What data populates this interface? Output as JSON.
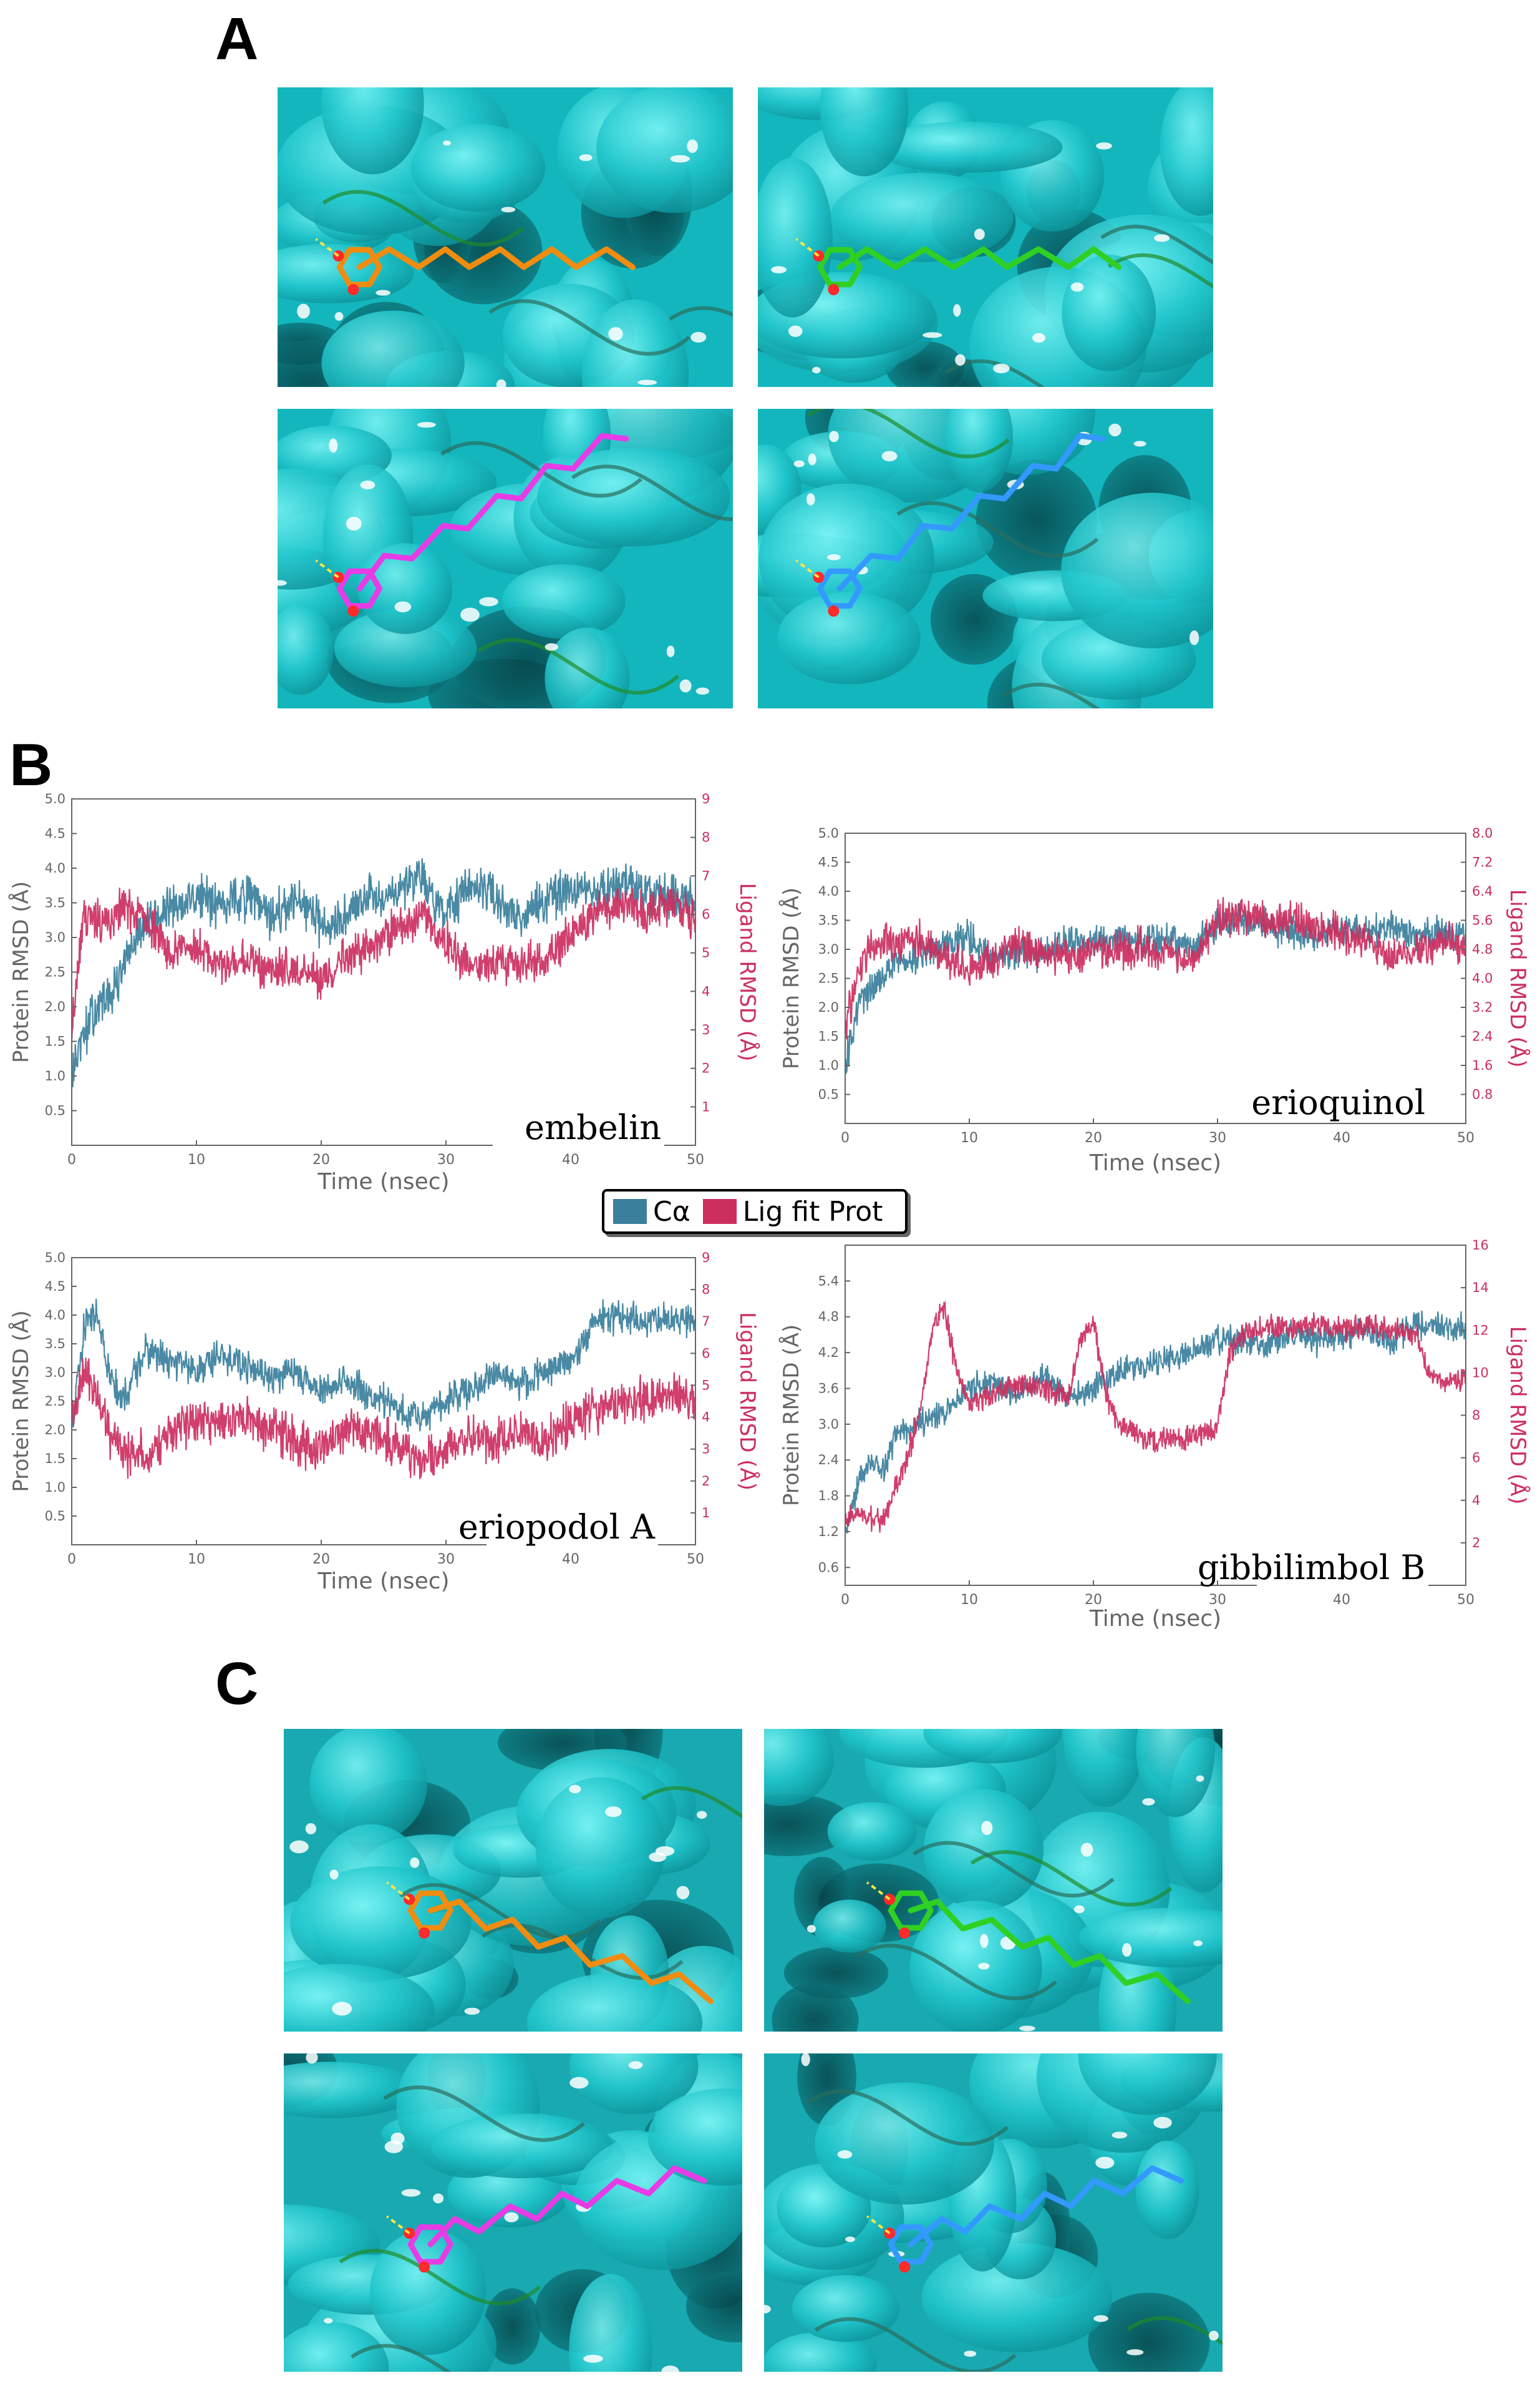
{
  "panels": {
    "a": "A",
    "b": "B",
    "c": "C"
  },
  "colors": {
    "protein": "#3a7f9c",
    "ligand": "#cc2f5e",
    "surface": "#20c6cc",
    "surface_dark": "#0a5d62",
    "embelin": "#f08c10",
    "erioquinol": "#2fd023",
    "eriopodol_a": "#e63ce6",
    "gibbilimbol_b": "#3399ff"
  },
  "legend": {
    "protein_label": "Cα",
    "ligand_label": "Lig fit Prot"
  },
  "chart_data": [
    {
      "type": "line",
      "name": "embelin",
      "title": "embelin",
      "xlabel": "Time (nsec)",
      "ylabel": "Protein RMSD (Å)",
      "y2label": "Ligand RMSD (Å)",
      "xlim": [
        0,
        50
      ],
      "ylim": [
        0,
        5.0
      ],
      "y2lim": [
        0,
        9
      ],
      "xticks": [
        0,
        10,
        20,
        30,
        40,
        50
      ],
      "yticks": [
        0.5,
        1.0,
        1.5,
        2.0,
        2.5,
        3.0,
        3.5,
        4.0,
        4.5,
        5.0
      ],
      "y2ticks": [
        1,
        2,
        3,
        4,
        5,
        6,
        7,
        8,
        9
      ],
      "xtick_labels": [
        "0",
        "10",
        "20",
        "30",
        "40",
        "50"
      ],
      "ytick_labels": [
        "0.5",
        "1.0",
        "1.5",
        "2.0",
        "2.5",
        "3.0",
        "3.5",
        "4.0",
        "4.5",
        "5.0"
      ],
      "y2tick_labels": [
        "1",
        "2",
        "3",
        "4",
        "5",
        "6",
        "7",
        "8",
        "9"
      ],
      "series": [
        {
          "name": "Cα",
          "axis": "left",
          "x": [
            0,
            1,
            2,
            3,
            4,
            5,
            6,
            8,
            10,
            12,
            14,
            16,
            18,
            20,
            22,
            24,
            26,
            28,
            30,
            32,
            34,
            36,
            38,
            40,
            42,
            44,
            46,
            48,
            50
          ],
          "values": [
            1.0,
            1.6,
            2.0,
            2.1,
            2.5,
            2.9,
            3.2,
            3.4,
            3.6,
            3.5,
            3.6,
            3.3,
            3.5,
            3.2,
            3.3,
            3.6,
            3.7,
            3.9,
            3.3,
            3.7,
            3.6,
            3.3,
            3.5,
            3.7,
            3.6,
            3.8,
            3.7,
            3.6,
            3.5
          ],
          "noise": 0.35
        },
        {
          "name": "Lig fit Prot",
          "axis": "right",
          "x": [
            0,
            1,
            2,
            3,
            4,
            6,
            8,
            10,
            12,
            14,
            16,
            18,
            20,
            22,
            24,
            26,
            28,
            30,
            32,
            34,
            36,
            38,
            40,
            42,
            44,
            46,
            48,
            50
          ],
          "values": [
            3.0,
            6.0,
            5.9,
            5.7,
            6.2,
            5.8,
            5.0,
            5.2,
            4.7,
            4.8,
            4.5,
            4.6,
            4.3,
            4.9,
            5.2,
            5.6,
            6.0,
            5.3,
            4.6,
            4.8,
            4.6,
            4.9,
            5.4,
            6.1,
            6.2,
            6.0,
            6.3,
            5.9
          ],
          "noise": 0.55
        }
      ]
    },
    {
      "type": "line",
      "name": "erioquinol",
      "title": "erioquinol",
      "xlabel": "Time (nsec)",
      "ylabel": "Protein RMSD (Å)",
      "y2label": "Ligand RMSD (Å)",
      "xlim": [
        0,
        50
      ],
      "ylim": [
        0,
        5.0
      ],
      "y2lim": [
        0,
        8.0
      ],
      "xticks": [
        0,
        10,
        20,
        30,
        40,
        50
      ],
      "yticks": [
        0.5,
        1.0,
        1.5,
        2.0,
        2.5,
        3.0,
        3.5,
        4.0,
        4.5,
        5.0
      ],
      "y2ticks": [
        0.8,
        1.6,
        2.4,
        3.2,
        4.0,
        4.8,
        5.6,
        6.4,
        7.2,
        8.0
      ],
      "xtick_labels": [
        "0",
        "10",
        "20",
        "30",
        "40",
        "50"
      ],
      "ytick_labels": [
        "0.5",
        "1.0",
        "1.5",
        "2.0",
        "2.5",
        "3.0",
        "3.5",
        "4.0",
        "4.5",
        "5.0"
      ],
      "y2tick_labels": [
        "0.8",
        "1.6",
        "2.4",
        "3.2",
        "4.0",
        "4.8",
        "5.6",
        "6.4",
        "7.2",
        "8.0"
      ],
      "series": [
        {
          "name": "Cα",
          "axis": "left",
          "x": [
            0,
            1,
            2,
            3,
            4,
            6,
            8,
            10,
            12,
            14,
            16,
            18,
            20,
            22,
            24,
            26,
            28,
            30,
            32,
            34,
            36,
            38,
            40,
            42,
            44,
            46,
            48,
            50
          ],
          "values": [
            1.0,
            2.0,
            2.3,
            2.5,
            2.8,
            2.9,
            3.1,
            3.2,
            2.8,
            3.0,
            2.9,
            3.2,
            3.1,
            3.2,
            3.1,
            3.2,
            3.0,
            3.4,
            3.5,
            3.4,
            3.3,
            3.2,
            3.4,
            3.3,
            3.4,
            3.2,
            3.3,
            3.2
          ],
          "noise": 0.3
        },
        {
          "name": "Lig fit Prot",
          "axis": "right",
          "x": [
            0,
            1,
            2,
            4,
            6,
            8,
            10,
            12,
            14,
            16,
            18,
            20,
            22,
            24,
            26,
            28,
            30,
            32,
            34,
            36,
            38,
            40,
            42,
            44,
            46,
            48,
            50
          ],
          "values": [
            2.5,
            4.2,
            4.8,
            5.0,
            5.1,
            4.6,
            4.2,
            4.5,
            5.0,
            4.6,
            4.5,
            4.8,
            4.7,
            4.9,
            4.6,
            4.5,
            5.6,
            5.8,
            5.5,
            5.7,
            5.4,
            5.2,
            5.0,
            4.6,
            4.8,
            5.0,
            4.9
          ],
          "noise": 0.55
        }
      ]
    },
    {
      "type": "line",
      "name": "eriopodol A",
      "title": "eriopodol A",
      "xlabel": "Time (nsec)",
      "ylabel": "Protein RMSD (Å)",
      "y2label": "Ligand RMSD (Å)",
      "xlim": [
        0,
        50
      ],
      "ylim": [
        0,
        5.0
      ],
      "y2lim": [
        0,
        9
      ],
      "xticks": [
        0,
        10,
        20,
        30,
        40,
        50
      ],
      "yticks": [
        0.5,
        1.0,
        1.5,
        2.0,
        2.5,
        3.0,
        3.5,
        4.0,
        4.5,
        5.0
      ],
      "y2ticks": [
        1,
        2,
        3,
        4,
        5,
        6,
        7,
        8,
        9
      ],
      "xtick_labels": [
        "0",
        "10",
        "20",
        "30",
        "40",
        "50"
      ],
      "ytick_labels": [
        "0.5",
        "1.0",
        "1.5",
        "2.0",
        "2.5",
        "3.0",
        "3.5",
        "4.0",
        "4.5",
        "5.0"
      ],
      "y2tick_labels": [
        "1",
        "2",
        "3",
        "4",
        "5",
        "6",
        "7",
        "8",
        "9"
      ],
      "series": [
        {
          "name": "Cα",
          "axis": "left",
          "x": [
            0,
            1,
            2,
            3,
            4,
            6,
            8,
            10,
            12,
            14,
            16,
            18,
            20,
            22,
            24,
            26,
            28,
            30,
            32,
            34,
            36,
            38,
            40,
            42,
            44,
            46,
            48,
            50
          ],
          "values": [
            2.0,
            3.8,
            4.0,
            3.0,
            2.5,
            3.4,
            3.2,
            3.0,
            3.3,
            3.1,
            2.9,
            3.0,
            2.7,
            2.8,
            2.6,
            2.4,
            2.2,
            2.5,
            2.7,
            3.0,
            2.8,
            3.0,
            3.2,
            3.9,
            4.0,
            3.9,
            3.9,
            3.9
          ],
          "noise": 0.3
        },
        {
          "name": "Lig fit Prot",
          "axis": "right",
          "x": [
            0,
            1,
            2,
            3,
            4,
            6,
            8,
            10,
            12,
            14,
            16,
            18,
            20,
            22,
            24,
            26,
            28,
            30,
            32,
            34,
            36,
            38,
            40,
            42,
            44,
            46,
            48,
            50
          ],
          "values": [
            4.0,
            5.5,
            4.5,
            3.5,
            3.0,
            2.8,
            3.5,
            4.0,
            3.8,
            4.0,
            3.6,
            3.2,
            3.0,
            3.6,
            3.5,
            3.2,
            2.6,
            3.0,
            3.4,
            3.3,
            3.4,
            3.3,
            3.8,
            4.2,
            4.5,
            4.6,
            4.7,
            4.6
          ],
          "noise": 0.75
        }
      ]
    },
    {
      "type": "line",
      "name": "gibbilimbol B",
      "title": "gibbilimbol B",
      "xlabel": "Time (nsec)",
      "ylabel": "Protein RMSD (Å)",
      "y2label": "Ligand RMSD (Å)",
      "xlim": [
        0,
        50
      ],
      "ylim": [
        0.3,
        6.0
      ],
      "y2lim": [
        0,
        16
      ],
      "xticks": [
        0,
        10,
        20,
        30,
        40,
        50
      ],
      "yticks": [
        0.6,
        1.2,
        1.8,
        2.4,
        3.0,
        3.6,
        4.2,
        4.8,
        5.4
      ],
      "y2ticks": [
        2,
        4,
        6,
        8,
        10,
        12,
        14,
        16
      ],
      "xtick_labels": [
        "0",
        "10",
        "20",
        "30",
        "40",
        "50"
      ],
      "ytick_labels": [
        "0.6",
        "1.2",
        "1.8",
        "2.4",
        "3.0",
        "3.6",
        "4.2",
        "4.8",
        "5.4"
      ],
      "y2tick_labels": [
        "2",
        "4",
        "6",
        "8",
        "10",
        "12",
        "14",
        "16"
      ],
      "series": [
        {
          "name": "Cα",
          "axis": "left",
          "x": [
            0,
            1,
            2,
            3,
            4,
            6,
            8,
            10,
            12,
            14,
            16,
            18,
            20,
            22,
            24,
            26,
            28,
            30,
            32,
            34,
            36,
            38,
            40,
            42,
            44,
            46,
            48,
            50
          ],
          "values": [
            1.2,
            2.0,
            2.4,
            2.2,
            2.8,
            3.0,
            3.2,
            3.6,
            3.7,
            3.5,
            3.8,
            3.4,
            3.6,
            3.9,
            4.0,
            4.1,
            4.2,
            4.4,
            4.4,
            4.3,
            4.5,
            4.4,
            4.5,
            4.6,
            4.4,
            4.7,
            4.6,
            4.6
          ],
          "noise": 0.25
        },
        {
          "name": "Lig fit Prot",
          "axis": "right",
          "x": [
            0,
            1,
            2,
            3,
            4,
            5,
            6,
            7,
            8,
            9,
            10,
            12,
            14,
            16,
            18,
            19,
            20,
            21,
            22,
            24,
            26,
            28,
            30,
            31,
            32,
            34,
            36,
            38,
            40,
            42,
            44,
            46,
            47,
            48,
            50
          ],
          "values": [
            3.0,
            3.5,
            3.2,
            3.0,
            4.5,
            6.0,
            8.0,
            12.0,
            13.0,
            10.0,
            8.5,
            9.0,
            9.5,
            9.2,
            9.0,
            11.5,
            12.5,
            9.0,
            7.5,
            7.0,
            6.8,
            7.0,
            7.5,
            11.0,
            11.8,
            12.2,
            12.0,
            12.3,
            12.1,
            12.2,
            12.0,
            11.8,
            10.0,
            9.5,
            9.8
          ],
          "noise": 0.6
        }
      ]
    }
  ]
}
